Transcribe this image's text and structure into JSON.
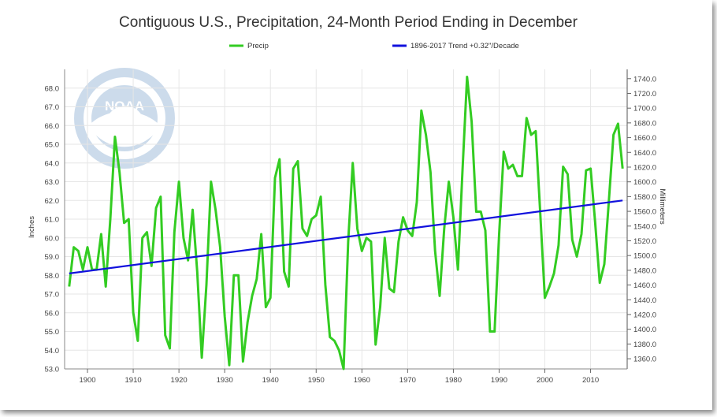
{
  "chart_data": {
    "type": "line",
    "title": "Contiguous U.S., Precipitation, 24-Month Period Ending in December",
    "ylabel": "Inches",
    "y2label": "Millimeters",
    "xlabel": "",
    "xlim": [
      1895,
      2018
    ],
    "ylim": [
      53.0,
      69.0
    ],
    "y2lim": [
      1346.2,
      1752.6
    ],
    "x_ticks": [
      "1900",
      "1910",
      "1920",
      "1930",
      "1940",
      "1950",
      "1960",
      "1970",
      "1980",
      "1990",
      "2000",
      "2010"
    ],
    "y_ticks": [
      "53.0",
      "54.0",
      "55.0",
      "56.0",
      "57.0",
      "58.0",
      "59.0",
      "60.0",
      "61.0",
      "62.0",
      "63.0",
      "64.0",
      "65.0",
      "66.0",
      "67.0",
      "68.0"
    ],
    "y2_ticks": [
      "1360.0",
      "1380.0",
      "1400.0",
      "1420.0",
      "1440.0",
      "1460.0",
      "1480.0",
      "1500.0",
      "1520.0",
      "1540.0",
      "1560.0",
      "1580.0",
      "1600.0",
      "1620.0",
      "1640.0",
      "1660.0",
      "1680.0",
      "1700.0",
      "1720.0",
      "1740.0"
    ],
    "legend_position": "top-center",
    "grid": true,
    "series": [
      {
        "name": "Precip",
        "color": "#33cc22",
        "x": [
          1896,
          1897,
          1898,
          1899,
          1900,
          1901,
          1902,
          1903,
          1904,
          1905,
          1906,
          1907,
          1908,
          1909,
          1910,
          1911,
          1912,
          1913,
          1914,
          1915,
          1916,
          1917,
          1918,
          1919,
          1920,
          1921,
          1922,
          1923,
          1924,
          1925,
          1926,
          1927,
          1928,
          1929,
          1930,
          1931,
          1932,
          1933,
          1934,
          1935,
          1936,
          1937,
          1938,
          1939,
          1940,
          1941,
          1942,
          1943,
          1944,
          1945,
          1946,
          1947,
          1948,
          1949,
          1950,
          1951,
          1952,
          1953,
          1954,
          1955,
          1956,
          1957,
          1958,
          1959,
          1960,
          1961,
          1962,
          1963,
          1964,
          1965,
          1966,
          1967,
          1968,
          1969,
          1970,
          1971,
          1972,
          1973,
          1974,
          1975,
          1976,
          1977,
          1978,
          1979,
          1980,
          1981,
          1982,
          1983,
          1984,
          1985,
          1986,
          1987,
          1988,
          1989,
          1990,
          1991,
          1992,
          1993,
          1994,
          1995,
          1996,
          1997,
          1998,
          1999,
          2000,
          2001,
          2002,
          2003,
          2004,
          2005,
          2006,
          2007,
          2008,
          2009,
          2010,
          2011,
          2012,
          2013,
          2014,
          2015,
          2016,
          2017
        ],
        "values": [
          57.4,
          59.5,
          59.3,
          58.3,
          59.5,
          58.3,
          58.3,
          60.2,
          57.4,
          61.0,
          65.4,
          63.5,
          60.8,
          61.0,
          56.0,
          54.5,
          60.0,
          60.3,
          58.5,
          61.6,
          62.2,
          54.8,
          54.1,
          60.3,
          63.0,
          60.0,
          58.8,
          61.5,
          58.2,
          53.6,
          57.5,
          63.0,
          61.5,
          59.5,
          55.8,
          53.2,
          58.0,
          58.0,
          53.4,
          55.5,
          56.9,
          57.8,
          60.2,
          56.3,
          56.8,
          63.2,
          64.2,
          58.2,
          57.4,
          63.7,
          64.1,
          60.5,
          60.1,
          61.0,
          61.2,
          62.2,
          57.5,
          54.7,
          54.5,
          54.0,
          53.0,
          59.8,
          64.0,
          60.5,
          59.3,
          60.0,
          59.8,
          54.3,
          56.3,
          60.0,
          57.3,
          57.1,
          59.8,
          61.1,
          60.4,
          60.1,
          61.9,
          66.8,
          65.5,
          63.5,
          59.3,
          56.9,
          60.5,
          63.0,
          61.1,
          58.3,
          63.6,
          68.6,
          66.2,
          61.4,
          61.4,
          60.4,
          55.0,
          55.0,
          60.2,
          64.6,
          63.7,
          63.9,
          63.3,
          63.3,
          66.4,
          65.5,
          65.7,
          61.3,
          56.8,
          57.4,
          58.1,
          59.6,
          63.8,
          63.4,
          59.9,
          59.0,
          60.2,
          63.6,
          63.7,
          60.8,
          57.6,
          58.6,
          62.0,
          65.5,
          66.1,
          63.7
        ]
      },
      {
        "name": "1896-2017 Trend +0.32\"/Decade",
        "color": "#1111dd",
        "x": [
          1896,
          2017
        ],
        "values": [
          58.1,
          62.0
        ]
      }
    ]
  }
}
